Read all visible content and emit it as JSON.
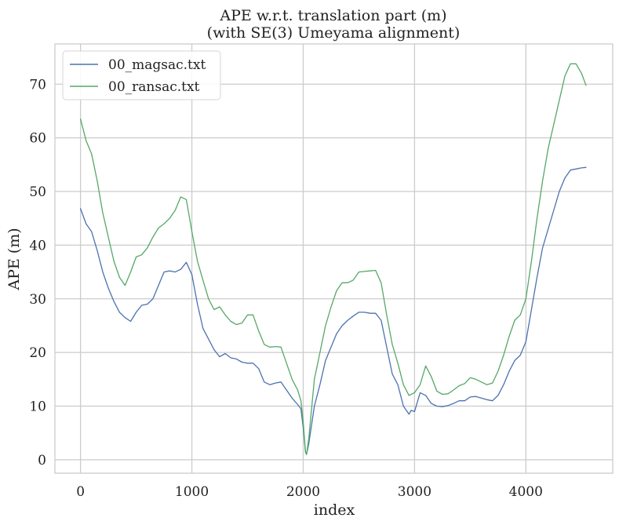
{
  "chart_data": {
    "type": "line",
    "title": "APE w.r.t. translation part (m)",
    "subtitle": "(with SE(3) Umeyama alignment)",
    "xlabel": "index",
    "ylabel": "APE (m)",
    "xlim": [
      -230,
      4780
    ],
    "ylim": [
      -2.5,
      77.5
    ],
    "xticks": [
      0,
      1000,
      2000,
      3000,
      4000
    ],
    "yticks": [
      0,
      10,
      20,
      30,
      40,
      50,
      60,
      70
    ],
    "grid": true,
    "legend_position": "top-left",
    "series": [
      {
        "name": "00_magsac.txt",
        "color": "#4c72b0",
        "x": [
          0,
          50,
          100,
          150,
          200,
          250,
          300,
          350,
          400,
          450,
          500,
          550,
          600,
          650,
          700,
          750,
          800,
          850,
          900,
          950,
          1000,
          1050,
          1100,
          1150,
          1200,
          1250,
          1300,
          1350,
          1400,
          1450,
          1500,
          1550,
          1600,
          1650,
          1700,
          1750,
          1800,
          1850,
          1900,
          1950,
          1980,
          2000,
          2020,
          2030,
          2050,
          2100,
          2150,
          2200,
          2250,
          2300,
          2350,
          2400,
          2450,
          2500,
          2550,
          2600,
          2650,
          2700,
          2750,
          2800,
          2850,
          2900,
          2950,
          2970,
          3000,
          3050,
          3100,
          3150,
          3200,
          3250,
          3300,
          3350,
          3400,
          3450,
          3500,
          3550,
          3600,
          3650,
          3700,
          3750,
          3800,
          3850,
          3900,
          3950,
          4000,
          4050,
          4100,
          4150,
          4200,
          4250,
          4300,
          4350,
          4400,
          4450,
          4500,
          4540
        ],
        "y": [
          46.8,
          44.0,
          42.5,
          39.0,
          35.0,
          32.0,
          29.5,
          27.5,
          26.5,
          25.8,
          27.5,
          28.8,
          29.0,
          30.0,
          32.5,
          35.0,
          35.2,
          35.0,
          35.5,
          36.8,
          34.5,
          29.0,
          24.5,
          22.5,
          20.5,
          19.2,
          19.8,
          19.0,
          18.8,
          18.2,
          18.0,
          18.0,
          17.0,
          14.5,
          14.0,
          14.3,
          14.5,
          13.0,
          11.5,
          10.3,
          9.5,
          6.0,
          1.5,
          1.0,
          3.0,
          10.0,
          14.0,
          18.5,
          21.0,
          23.5,
          25.0,
          26.0,
          26.8,
          27.5,
          27.5,
          27.3,
          27.3,
          26.0,
          21.0,
          16.0,
          14.0,
          10.0,
          8.5,
          9.2,
          9.0,
          12.5,
          12.0,
          10.5,
          10.0,
          9.9,
          10.1,
          10.5,
          11.0,
          11.0,
          11.7,
          11.8,
          11.5,
          11.2,
          11.0,
          12.0,
          14.0,
          16.5,
          18.5,
          19.5,
          22.0,
          28.0,
          34.0,
          39.5,
          43.0,
          46.5,
          50.0,
          52.5,
          54.0,
          54.2,
          54.4,
          54.5
        ]
      },
      {
        "name": "00_ransac.txt",
        "color": "#55a868",
        "x": [
          0,
          50,
          100,
          150,
          200,
          250,
          300,
          350,
          400,
          450,
          500,
          550,
          600,
          650,
          700,
          750,
          800,
          850,
          900,
          950,
          1000,
          1050,
          1100,
          1150,
          1200,
          1250,
          1300,
          1350,
          1400,
          1450,
          1500,
          1550,
          1600,
          1650,
          1700,
          1750,
          1800,
          1850,
          1900,
          1950,
          1980,
          2000,
          2020,
          2030,
          2050,
          2100,
          2150,
          2200,
          2250,
          2300,
          2350,
          2400,
          2450,
          2500,
          2550,
          2600,
          2650,
          2700,
          2750,
          2800,
          2850,
          2900,
          2950,
          2970,
          3000,
          3050,
          3100,
          3150,
          3200,
          3250,
          3300,
          3350,
          3400,
          3450,
          3500,
          3550,
          3600,
          3650,
          3700,
          3750,
          3800,
          3850,
          3900,
          3950,
          4000,
          4050,
          4100,
          4150,
          4200,
          4250,
          4300,
          4350,
          4400,
          4450,
          4500,
          4540
        ],
        "y": [
          63.5,
          59.5,
          57.0,
          52.0,
          46.0,
          41.5,
          37.0,
          34.0,
          32.5,
          35.0,
          37.8,
          38.2,
          39.5,
          41.5,
          43.2,
          44.0,
          45.0,
          46.5,
          49.0,
          48.5,
          42.5,
          37.0,
          33.5,
          30.0,
          28.0,
          28.5,
          27.0,
          25.8,
          25.2,
          25.5,
          27.0,
          27.0,
          24.0,
          21.5,
          21.0,
          21.1,
          21.0,
          18.0,
          15.0,
          13.0,
          11.0,
          7.0,
          1.5,
          1.0,
          4.0,
          15.0,
          20.0,
          25.0,
          28.5,
          31.5,
          33.0,
          33.0,
          33.5,
          35.0,
          35.1,
          35.2,
          35.3,
          33.0,
          27.0,
          21.5,
          18.0,
          14.0,
          12.0,
          12.2,
          12.5,
          14.0,
          17.5,
          15.5,
          12.8,
          12.2,
          12.3,
          13.0,
          13.8,
          14.2,
          15.3,
          15.0,
          14.5,
          14.0,
          14.3,
          16.5,
          19.5,
          23.0,
          26.0,
          27.0,
          30.0,
          37.0,
          45.0,
          52.0,
          58.0,
          62.5,
          67.0,
          71.5,
          73.8,
          73.8,
          72.0,
          69.8
        ]
      }
    ]
  }
}
